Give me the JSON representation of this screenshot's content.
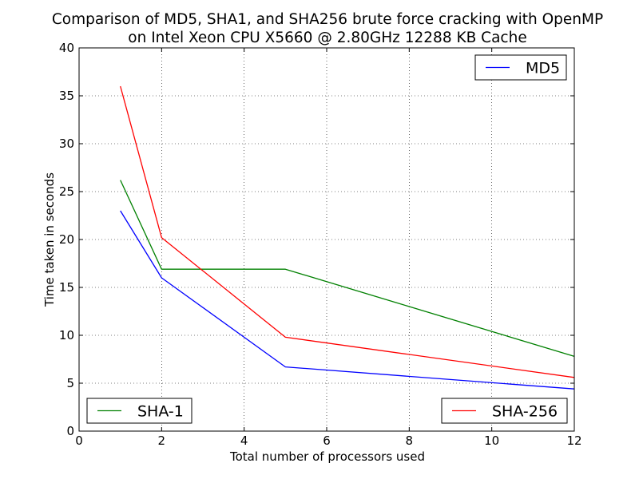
{
  "chart_data": {
    "type": "line",
    "title": "Comparison of MD5, SHA1, and SHA256 brute force cracking with OpenMP",
    "subtitle": "on Intel Xeon CPU X5660 @ 2.80GHz 12288 KB Cache",
    "xlabel": "Total number of processors used",
    "ylabel": "Time taken in seconds",
    "xlim": [
      0,
      12
    ],
    "ylim": [
      0,
      40
    ],
    "xticks": [
      0,
      2,
      4,
      6,
      8,
      10,
      12
    ],
    "yticks": [
      0,
      5,
      10,
      15,
      20,
      25,
      30,
      35,
      40
    ],
    "grid": true,
    "x": [
      1,
      2,
      5,
      12
    ],
    "series": [
      {
        "name": "MD5",
        "color": "#0000ff",
        "values": [
          23.0,
          16.0,
          6.7,
          4.4
        ],
        "legend": "upper-right"
      },
      {
        "name": "SHA-1",
        "color": "#008000",
        "values": [
          26.2,
          16.9,
          16.9,
          7.8
        ],
        "legend": "lower-left"
      },
      {
        "name": "SHA-256",
        "color": "#ff0000",
        "values": [
          36.0,
          20.2,
          9.8,
          5.6
        ],
        "legend": "lower-right"
      }
    ]
  }
}
